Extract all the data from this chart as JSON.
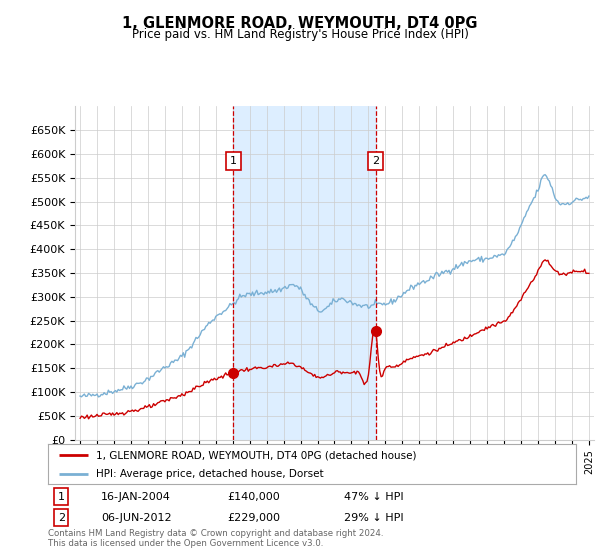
{
  "title": "1, GLENMORE ROAD, WEYMOUTH, DT4 0PG",
  "subtitle": "Price paid vs. HM Land Registry's House Price Index (HPI)",
  "legend_line1": "1, GLENMORE ROAD, WEYMOUTH, DT4 0PG (detached house)",
  "legend_line2": "HPI: Average price, detached house, Dorset",
  "footnote": "Contains HM Land Registry data © Crown copyright and database right 2024.\nThis data is licensed under the Open Government Licence v3.0.",
  "annotation1_label": "1",
  "annotation1_date": "16-JAN-2004",
  "annotation1_price": "£140,000",
  "annotation1_hpi": "47% ↓ HPI",
  "annotation2_label": "2",
  "annotation2_date": "06-JUN-2012",
  "annotation2_price": "£229,000",
  "annotation2_hpi": "29% ↓ HPI",
  "red_color": "#cc0000",
  "blue_color": "#7ab0d4",
  "shading_color": "#ddeeff",
  "grid_color": "#cccccc",
  "bg_color": "#ffffff",
  "ylim_min": 0,
  "ylim_max": 700000,
  "yticks": [
    0,
    50000,
    100000,
    150000,
    200000,
    250000,
    300000,
    350000,
    400000,
    450000,
    500000,
    550000,
    600000,
    650000
  ],
  "sale1_x": 2004.04,
  "sale1_y": 140000,
  "sale2_x": 2012.43,
  "sale2_y": 229000,
  "xlim_min": 1994.7,
  "xlim_max": 2025.3
}
